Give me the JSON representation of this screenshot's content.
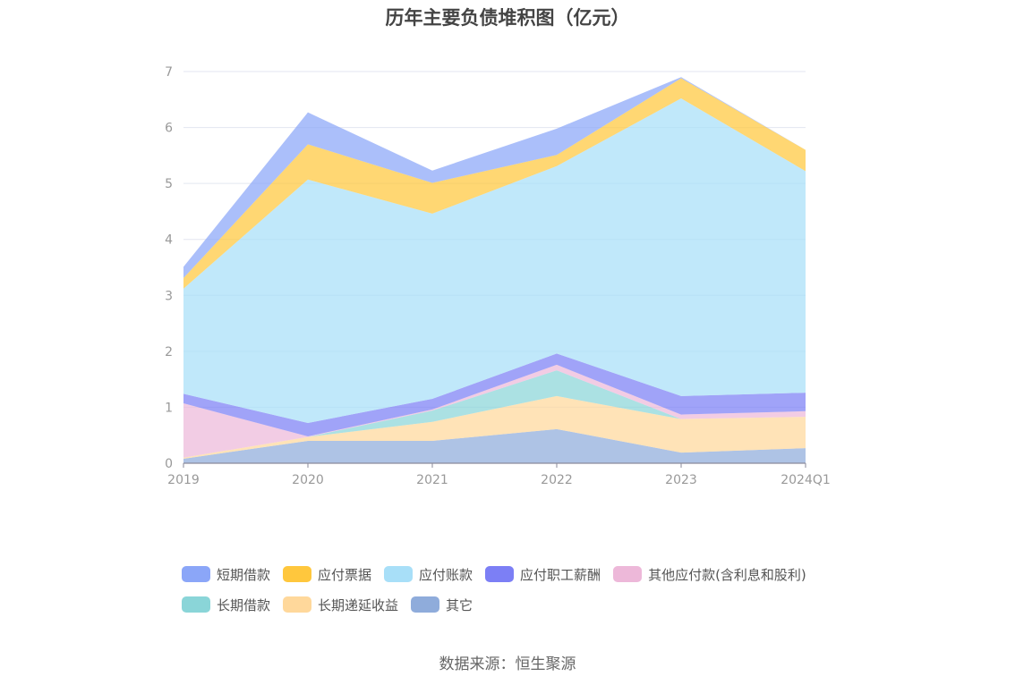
{
  "chart_data": {
    "type": "area",
    "stacked": true,
    "title": "历年主要负债堆积图（亿元）",
    "categories": [
      "2019",
      "2020",
      "2021",
      "2022",
      "2023",
      "2024Q1"
    ],
    "ylim": [
      0,
      7
    ],
    "yticks": [
      "0",
      "1",
      "2",
      "3",
      "4",
      "5",
      "6",
      "7"
    ],
    "grid": true,
    "legend_position": "bottom",
    "series": [
      {
        "name": "其它",
        "color": "#8FACDB",
        "values": [
          0.08,
          0.4,
          0.4,
          0.61,
          0.19,
          0.27
        ]
      },
      {
        "name": "长期递延收益",
        "color": "#FFD89B",
        "values": [
          0.02,
          0.07,
          0.34,
          0.59,
          0.6,
          0.56
        ]
      },
      {
        "name": "长期借款",
        "color": "#8AD5D8",
        "values": [
          0.0,
          0.0,
          0.2,
          0.46,
          0.0,
          0.0
        ]
      },
      {
        "name": "其他应付款(含利息和股利)",
        "color": "#EDB8D9",
        "values": [
          0.97,
          0.01,
          0.02,
          0.1,
          0.08,
          0.1
        ]
      },
      {
        "name": "应付职工薪酬",
        "color": "#7C7FF5",
        "values": [
          0.17,
          0.24,
          0.19,
          0.2,
          0.33,
          0.33
        ]
      },
      {
        "name": "应付账款",
        "color": "#A8DFF8",
        "values": [
          1.88,
          4.35,
          3.31,
          3.35,
          5.32,
          3.96
        ]
      },
      {
        "name": "应付票据",
        "color": "#FFC73D",
        "values": [
          0.19,
          0.63,
          0.55,
          0.2,
          0.36,
          0.38
        ]
      },
      {
        "name": "短期借款",
        "color": "#8BA6F8",
        "values": [
          0.2,
          0.57,
          0.22,
          0.47,
          0.02,
          0.0
        ]
      }
    ],
    "legend_order": [
      "短期借款",
      "应付票据",
      "应付账款",
      "应付职工薪酬",
      "其他应付款(含利息和股利)",
      "长期借款",
      "长期递延收益",
      "其它"
    ]
  },
  "source_text": "数据来源：恒生聚源"
}
